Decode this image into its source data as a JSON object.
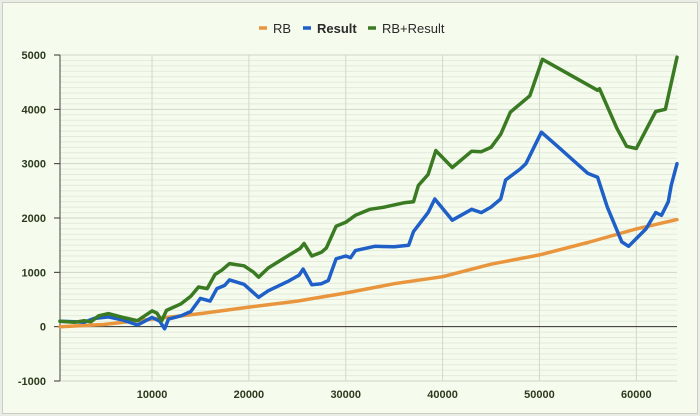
{
  "chart_data": {
    "type": "line",
    "title": "",
    "xlabel": "",
    "ylabel": "",
    "xlim": [
      500,
      64200
    ],
    "ylim": [
      -1000,
      5000
    ],
    "xticks": [
      10000,
      20000,
      30000,
      40000,
      50000,
      60000
    ],
    "yticks": [
      -1000,
      0,
      1000,
      2000,
      3000,
      4000,
      5000
    ],
    "grid": true,
    "legend_position": "top",
    "series": [
      {
        "name": "RB",
        "color": "#e8953e",
        "points": [
          [
            500,
            0
          ],
          [
            5000,
            40
          ],
          [
            10000,
            140
          ],
          [
            15000,
            240
          ],
          [
            20000,
            360
          ],
          [
            25000,
            470
          ],
          [
            30000,
            620
          ],
          [
            35000,
            790
          ],
          [
            40000,
            920
          ],
          [
            45000,
            1150
          ],
          [
            50000,
            1320
          ],
          [
            55000,
            1550
          ],
          [
            60000,
            1800
          ],
          [
            64200,
            1970
          ]
        ]
      },
      {
        "name": "Result",
        "color": "#1f5fc8",
        "points": [
          [
            500,
            100
          ],
          [
            2000,
            90
          ],
          [
            3000,
            80
          ],
          [
            4000,
            150
          ],
          [
            5500,
            180
          ],
          [
            7000,
            120
          ],
          [
            8500,
            30
          ],
          [
            10000,
            170
          ],
          [
            10800,
            100
          ],
          [
            11300,
            -40
          ],
          [
            11700,
            140
          ],
          [
            13000,
            200
          ],
          [
            14000,
            280
          ],
          [
            15000,
            520
          ],
          [
            16000,
            470
          ],
          [
            16700,
            700
          ],
          [
            17500,
            760
          ],
          [
            18000,
            860
          ],
          [
            19500,
            780
          ],
          [
            21000,
            540
          ],
          [
            22000,
            660
          ],
          [
            24000,
            830
          ],
          [
            25200,
            950
          ],
          [
            25600,
            1060
          ],
          [
            26500,
            770
          ],
          [
            27500,
            790
          ],
          [
            28200,
            850
          ],
          [
            29000,
            1250
          ],
          [
            30000,
            1300
          ],
          [
            30500,
            1270
          ],
          [
            31000,
            1400
          ],
          [
            33000,
            1480
          ],
          [
            35000,
            1470
          ],
          [
            36500,
            1500
          ],
          [
            37000,
            1750
          ],
          [
            38500,
            2100
          ],
          [
            39200,
            2350
          ],
          [
            41000,
            1960
          ],
          [
            43000,
            2160
          ],
          [
            44000,
            2100
          ],
          [
            45000,
            2200
          ],
          [
            46000,
            2350
          ],
          [
            46500,
            2700
          ],
          [
            48000,
            2900
          ],
          [
            48600,
            3000
          ],
          [
            50200,
            3580
          ],
          [
            52000,
            3300
          ],
          [
            55000,
            2820
          ],
          [
            56000,
            2750
          ],
          [
            57000,
            2200
          ],
          [
            58500,
            1560
          ],
          [
            59200,
            1480
          ],
          [
            61000,
            1800
          ],
          [
            62000,
            2100
          ],
          [
            62600,
            2050
          ],
          [
            63300,
            2300
          ],
          [
            63600,
            2600
          ],
          [
            64200,
            3000
          ]
        ]
      },
      {
        "name": "RB+Result",
        "color": "#3a7a22",
        "points": [
          [
            500,
            100
          ],
          [
            2000,
            80
          ],
          [
            3000,
            110
          ],
          [
            3700,
            90
          ],
          [
            4500,
            200
          ],
          [
            5500,
            240
          ],
          [
            7000,
            170
          ],
          [
            8500,
            110
          ],
          [
            10000,
            290
          ],
          [
            10500,
            250
          ],
          [
            11000,
            110
          ],
          [
            11500,
            300
          ],
          [
            13000,
            420
          ],
          [
            14000,
            560
          ],
          [
            14800,
            730
          ],
          [
            15700,
            700
          ],
          [
            16500,
            960
          ],
          [
            17200,
            1040
          ],
          [
            18000,
            1160
          ],
          [
            19500,
            1120
          ],
          [
            20500,
            1000
          ],
          [
            21000,
            910
          ],
          [
            22000,
            1080
          ],
          [
            24000,
            1300
          ],
          [
            25300,
            1440
          ],
          [
            25700,
            1530
          ],
          [
            26500,
            1300
          ],
          [
            27500,
            1370
          ],
          [
            28000,
            1450
          ],
          [
            29000,
            1850
          ],
          [
            30000,
            1920
          ],
          [
            31000,
            2050
          ],
          [
            32500,
            2160
          ],
          [
            34000,
            2200
          ],
          [
            36000,
            2280
          ],
          [
            37000,
            2300
          ],
          [
            37500,
            2600
          ],
          [
            38500,
            2800
          ],
          [
            39300,
            3240
          ],
          [
            41000,
            2930
          ],
          [
            43000,
            3230
          ],
          [
            44000,
            3220
          ],
          [
            45000,
            3300
          ],
          [
            46000,
            3540
          ],
          [
            47000,
            3950
          ],
          [
            49000,
            4250
          ],
          [
            50300,
            4920
          ],
          [
            56000,
            4350
          ],
          [
            56200,
            4380
          ],
          [
            58000,
            3650
          ],
          [
            59000,
            3320
          ],
          [
            60000,
            3280
          ],
          [
            62000,
            3960
          ],
          [
            63000,
            4000
          ],
          [
            63500,
            4400
          ],
          [
            64200,
            4960
          ]
        ]
      }
    ]
  }
}
